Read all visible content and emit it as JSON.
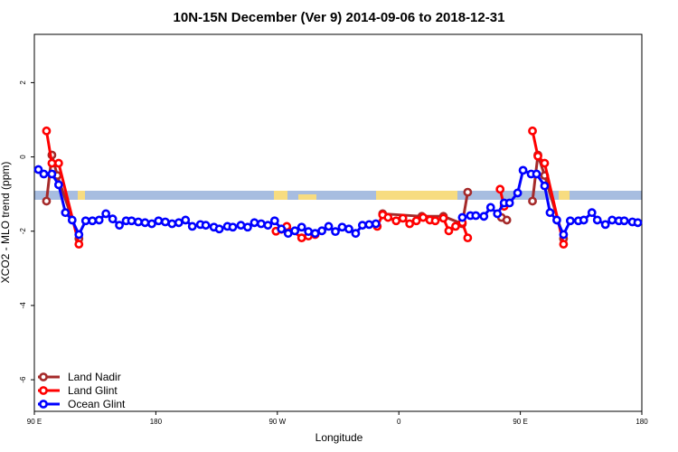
{
  "chart_data": {
    "type": "line",
    "title": "10N-15N December (Ver 9)   2014-09-06 to 2018-12-31",
    "x_label": "Longitude",
    "y_label": "XCO2 - MLO trend (ppm)",
    "xlim": [
      90,
      540
    ],
    "xticks": [
      {
        "value": 90,
        "label": "90 E"
      },
      {
        "value": 180,
        "label": "180"
      },
      {
        "value": 270,
        "label": "90 W"
      },
      {
        "value": 360,
        "label": "0"
      },
      {
        "value": 450,
        "label": "90 E"
      },
      {
        "value": 540,
        "label": "180"
      }
    ],
    "ylim": [
      -6.85,
      3.3
    ],
    "yticks": [
      -6,
      -4,
      -2,
      0,
      2
    ],
    "legend": "bottom-left",
    "series": [
      {
        "name": "Land Nadir",
        "color": "#a52a2a",
        "x": [
          99,
          103,
          107,
          123,
          null,
          348,
          377,
          393,
          407,
          411,
          null,
          436,
          440,
          null,
          459,
          463,
          468,
          482
        ],
        "values": [
          -1.19,
          0.05,
          -0.5,
          -2.2,
          null,
          -1.53,
          -1.6,
          -1.6,
          -1.8,
          -0.95,
          null,
          -1.63,
          -1.7,
          null,
          -1.19,
          0.05,
          -0.5,
          -2.2
        ]
      },
      {
        "name": "Land Glint",
        "color": "#ff0000",
        "x": [
          99,
          103,
          108,
          123,
          null,
          269,
          273,
          277,
          288,
          293,
          298,
          null,
          344,
          348,
          352,
          358,
          363,
          368,
          373,
          378,
          383,
          387,
          393,
          397,
          402,
          407,
          411,
          null,
          435,
          438,
          null,
          459,
          463,
          468,
          482
        ],
        "values": [
          0.7,
          -0.17,
          -0.17,
          -2.35,
          null,
          -2.0,
          -1.95,
          -1.87,
          -2.18,
          -2.13,
          -2.09,
          null,
          -1.87,
          -1.56,
          -1.63,
          -1.72,
          -1.65,
          -1.8,
          -1.72,
          -1.63,
          -1.7,
          -1.72,
          -1.65,
          -1.99,
          -1.87,
          -1.77,
          -2.18,
          null,
          -0.87,
          -1.33,
          null,
          0.7,
          0.02,
          -0.17,
          -2.35
        ]
      },
      {
        "name": "Ocean Glint",
        "color": "#0000ff",
        "x": [
          93,
          97,
          103,
          108,
          113,
          118,
          123,
          128,
          133,
          138,
          143,
          148,
          153,
          158,
          162,
          167,
          172,
          177,
          182,
          187,
          192,
          197,
          202,
          207,
          213,
          217,
          223,
          227,
          233,
          237,
          243,
          248,
          253,
          258,
          263,
          268,
          273,
          278,
          283,
          288,
          293,
          298,
          303,
          308,
          313,
          318,
          323,
          328,
          333,
          338,
          343,
          null,
          407,
          413,
          417,
          423,
          428,
          433,
          438,
          442,
          448,
          452,
          458,
          462,
          468,
          472,
          477,
          482,
          487,
          493,
          497,
          503,
          507,
          513,
          518,
          523,
          527,
          533,
          537
        ],
        "values": [
          -0.34,
          -0.46,
          -0.46,
          -0.75,
          -1.5,
          -1.7,
          -2.09,
          -1.72,
          -1.72,
          -1.7,
          -1.53,
          -1.67,
          -1.84,
          -1.72,
          -1.72,
          -1.75,
          -1.77,
          -1.8,
          -1.72,
          -1.75,
          -1.8,
          -1.77,
          -1.7,
          -1.87,
          -1.82,
          -1.84,
          -1.89,
          -1.94,
          -1.87,
          -1.89,
          -1.84,
          -1.89,
          -1.77,
          -1.8,
          -1.84,
          -1.72,
          -1.94,
          -2.06,
          -1.99,
          -1.89,
          -2.01,
          -2.06,
          -1.99,
          -1.87,
          -2.01,
          -1.89,
          -1.94,
          -2.06,
          -1.84,
          -1.82,
          -1.8,
          null,
          -1.63,
          -1.58,
          -1.58,
          -1.6,
          -1.36,
          -1.53,
          -1.24,
          -1.24,
          -0.97,
          -0.36,
          -0.46,
          -0.46,
          -0.78,
          -1.5,
          -1.7,
          -2.09,
          -1.72,
          -1.72,
          -1.7,
          -1.5,
          -1.7,
          -1.82,
          -1.7,
          -1.72,
          -1.72,
          -1.75,
          -1.77
        ]
      }
    ]
  }
}
